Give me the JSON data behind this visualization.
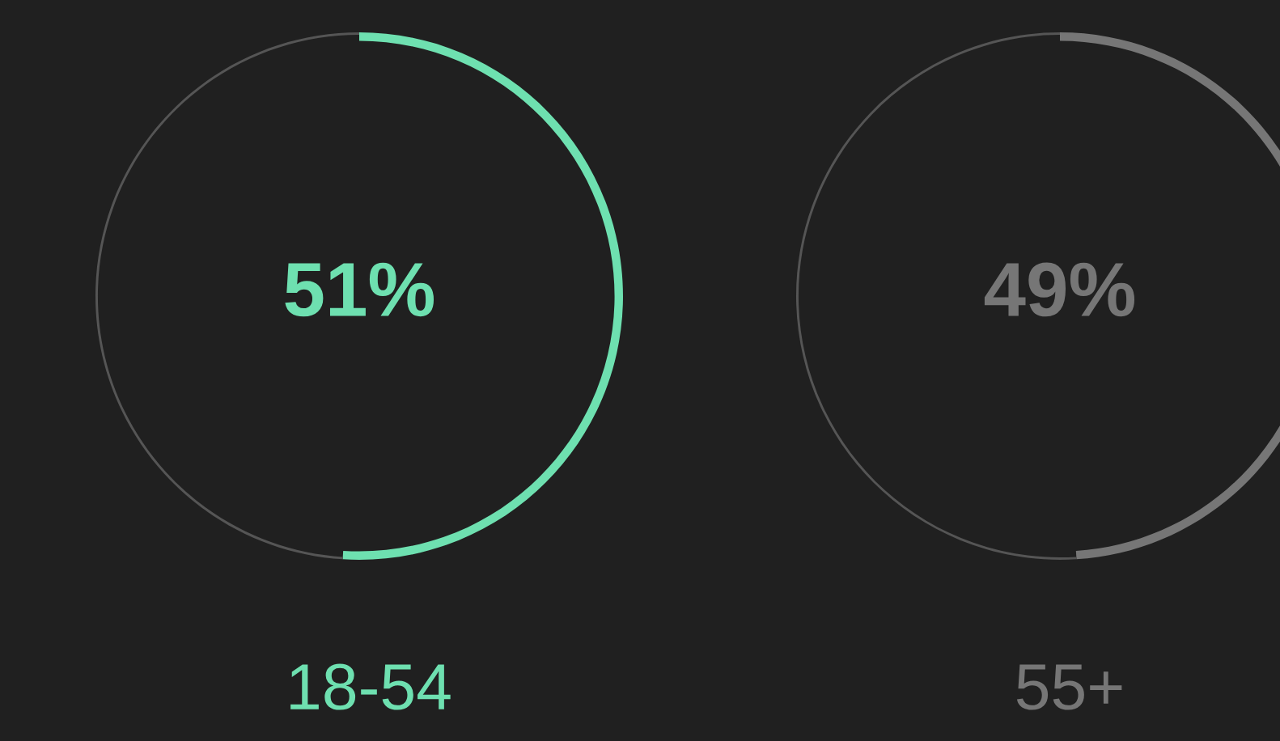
{
  "chart_data": [
    {
      "type": "donut",
      "categories": [
        "18-54",
        null
      ],
      "values": [
        51,
        49
      ],
      "colors": [
        "#6ee0b0",
        "#555555"
      ],
      "value_labels": [
        "51%",
        null
      ]
    },
    {
      "type": "donut",
      "categories": [
        "55+",
        null
      ],
      "values": [
        49,
        51
      ],
      "colors": [
        "#767676",
        "#555555"
      ],
      "value_labels": [
        "49%",
        null
      ]
    }
  ]
}
